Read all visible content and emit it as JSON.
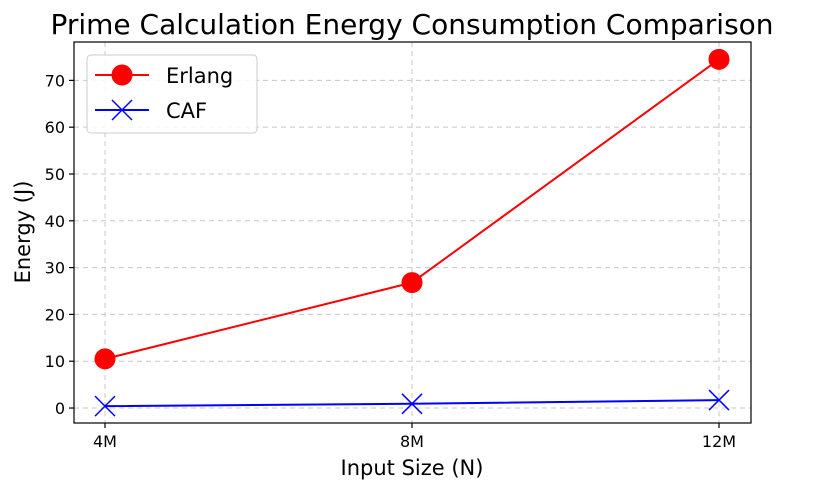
{
  "chart_data": {
    "type": "line",
    "title": "Prime Calculation Energy Consumption Comparison",
    "xlabel": "Input Size (N)",
    "ylabel": "Energy (J)",
    "categories": [
      "4M",
      "8M",
      "12M"
    ],
    "ylim": [
      -3.2,
      78.2
    ],
    "yticks": [
      0,
      10,
      20,
      30,
      40,
      50,
      60,
      70
    ],
    "grid": true,
    "legend_position": "top-left",
    "series": [
      {
        "name": "Erlang",
        "values": [
          10.5,
          26.8,
          74.5
        ],
        "color": "#ff0000",
        "marker": "circle"
      },
      {
        "name": "CAF",
        "values": [
          0.4,
          0.9,
          1.7
        ],
        "color": "#0000ff",
        "marker": "x"
      }
    ]
  }
}
